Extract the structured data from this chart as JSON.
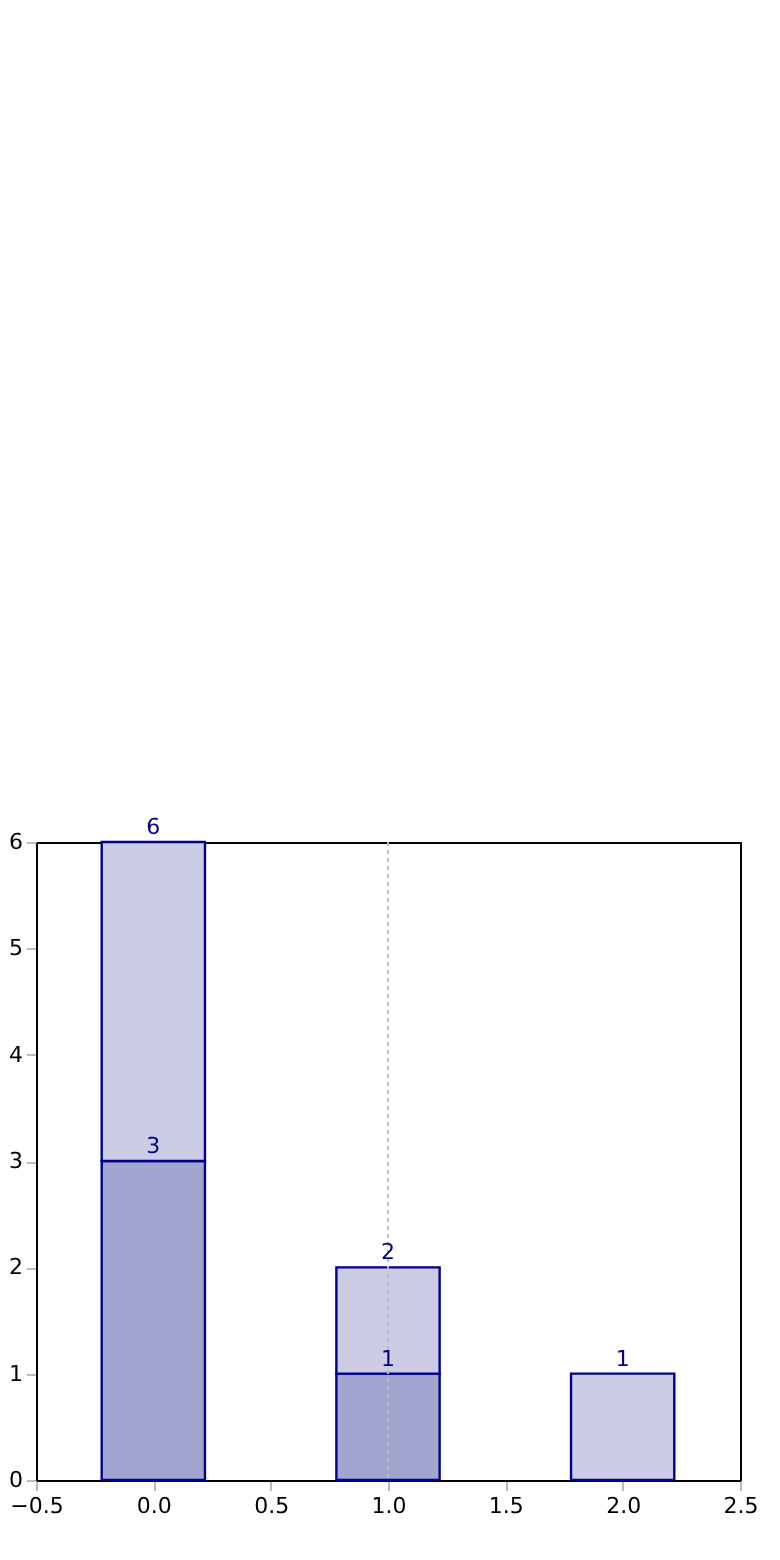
{
  "chart_data": {
    "type": "bar",
    "stacked": true,
    "x": [
      0,
      1,
      2
    ],
    "series": [
      {
        "color": "#a3a5d1",
        "values": [
          3,
          1,
          null
        ],
        "value_labels": [
          "3",
          "1",
          null
        ]
      },
      {
        "color": "#cccce4",
        "values": [
          3,
          1,
          1
        ]
      }
    ],
    "totals": [
      "6",
      "2",
      "1"
    ],
    "xlim": [
      -0.5,
      2.5
    ],
    "xticks": [
      {
        "value": -0.5,
        "label": "−0.5"
      },
      {
        "value": 0,
        "label": "0.0"
      },
      {
        "value": 0.5,
        "label": "0.5"
      },
      {
        "value": 1,
        "label": "1.0"
      },
      {
        "value": 1.5,
        "label": "1.5"
      },
      {
        "value": 2,
        "label": "2.0"
      },
      {
        "value": 2.5,
        "label": "2.5"
      }
    ],
    "ylim": [
      0,
      6
    ],
    "yticks": [
      0,
      1,
      2,
      3,
      4,
      5,
      6
    ],
    "ref_lines": [
      {
        "axis": "x",
        "value": 1,
        "color": "#bbbbbb",
        "line_style": "dotted"
      }
    ],
    "grid": false
  }
}
